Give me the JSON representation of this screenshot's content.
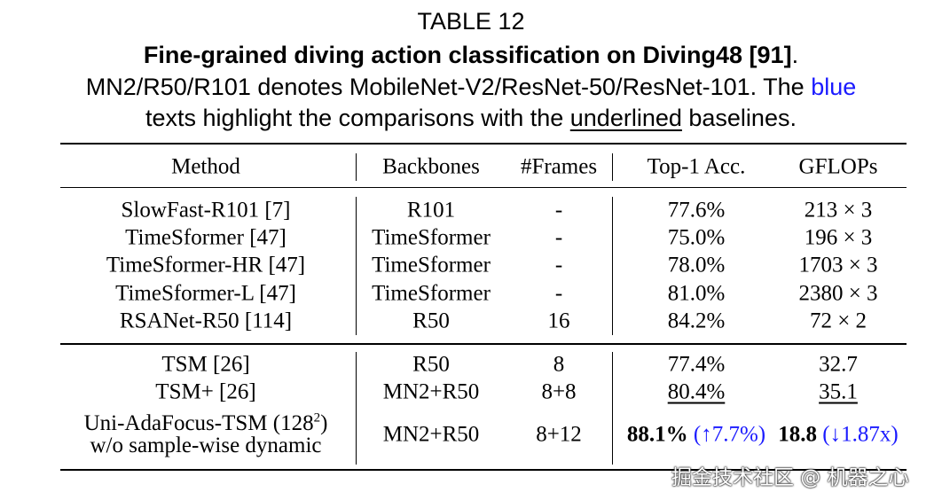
{
  "caption": {
    "label": "TABLE 12",
    "title": "Fine-grained diving action classification on Diving48 [91]",
    "title_end": ".",
    "description": [
      [
        {
          "text": "MN2/R50/R101 denotes MobileNet-V2/ResNet-50/ResNet-101. The "
        },
        {
          "text": "blue",
          "color": "#1a1aff"
        }
      ],
      [
        {
          "text": "texts highlight the comparisons with the "
        },
        {
          "text": "underlined",
          "underline": true
        },
        {
          "text": " baselines."
        }
      ]
    ]
  },
  "table": {
    "columns": [
      "Method",
      "Backbones",
      "#Frames",
      "Top-1 Acc.",
      "GFLOPs"
    ],
    "groups": [
      [
        [
          "SlowFast-R101 [7]",
          "R101",
          "-",
          "77.6%",
          "213 × 3"
        ],
        [
          "TimeSformer [47]",
          "TimeSformer",
          "-",
          "75.0%",
          "196 × 3"
        ],
        [
          "TimeSformer-HR [47]",
          "TimeSformer",
          "-",
          "78.0%",
          "1703 × 3"
        ],
        [
          "TimeSformer-L [47]",
          "TimeSformer",
          "-",
          "81.0%",
          "2380 × 3"
        ],
        [
          "RSANet-R50 [114]",
          "R50",
          "16",
          "84.2%",
          "72 × 2"
        ]
      ],
      [
        [
          "TSM [26]",
          "R50",
          "8",
          "77.4%",
          "32.7"
        ],
        [
          "TSM+ [26]",
          "MN2+R50",
          "8+8",
          [
            {
              "text": "80.4%",
              "underline": true
            }
          ],
          [
            {
              "text": "35.1",
              "underline": true
            }
          ]
        ],
        [
          [
            {
              "text": "Uni-AdaFocus-TSM (128"
            },
            {
              "text": "2",
              "sup": true
            },
            {
              "text": ")"
            },
            {
              "text": "w/o sample-wise dynamic",
              "newline": true
            }
          ],
          "MN2+R50",
          "8+12",
          [
            {
              "text": "88.1%",
              "bold": true
            },
            {
              "text": " (↑7.7%)",
              "color": "#1a1aff"
            }
          ],
          [
            {
              "text": "18.8",
              "bold": true
            },
            {
              "text": " (↓1.87x)",
              "color": "#1a1aff"
            }
          ]
        ]
      ]
    ]
  },
  "watermark": "掘金技术社区 @ 机器之心"
}
